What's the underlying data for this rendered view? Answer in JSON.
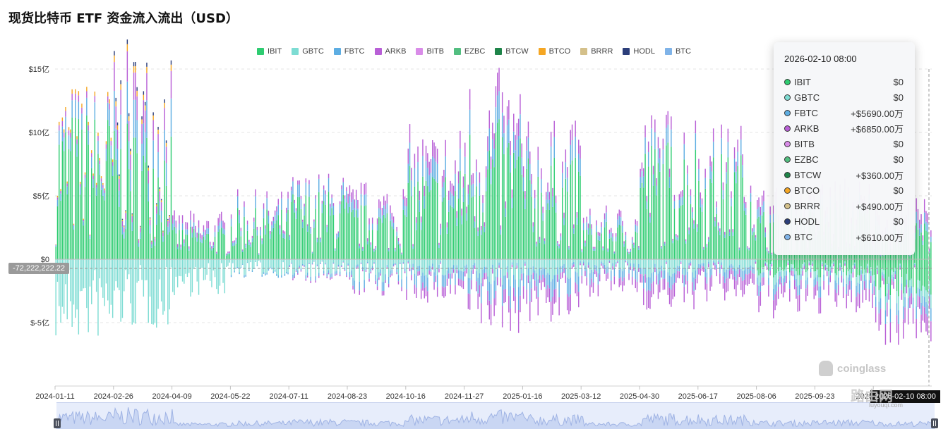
{
  "title": "现货比特币 ETF 资金流入流出（USD）",
  "legend": [
    {
      "name": "IBIT",
      "color": "#2ecc71"
    },
    {
      "name": "GBTC",
      "color": "#7ddcd3"
    },
    {
      "name": "FBTC",
      "color": "#5dade2"
    },
    {
      "name": "ARKB",
      "color": "#b85fd6"
    },
    {
      "name": "BITB",
      "color": "#d98ce8"
    },
    {
      "name": "EZBC",
      "color": "#52be80"
    },
    {
      "name": "BTCW",
      "color": "#1e8449"
    },
    {
      "name": "BTCO",
      "color": "#f5a623"
    },
    {
      "name": "BRRR",
      "color": "#d4c08a"
    },
    {
      "name": "HODL",
      "color": "#2c3e7a"
    },
    {
      "name": "BTC",
      "color": "#7fb3e8"
    }
  ],
  "tooltip": {
    "date": "2026-02-10 08:00",
    "rows": [
      {
        "name": "IBIT",
        "value": "$0",
        "color": "#2ecc71"
      },
      {
        "name": "GBTC",
        "value": "$0",
        "color": "#7ddcd3"
      },
      {
        "name": "FBTC",
        "value": "+$5690.00万",
        "color": "#5dade2"
      },
      {
        "name": "ARKB",
        "value": "+$6850.00万",
        "color": "#b85fd6"
      },
      {
        "name": "BITB",
        "value": "$0",
        "color": "#d98ce8"
      },
      {
        "name": "EZBC",
        "value": "$0",
        "color": "#52be80"
      },
      {
        "name": "BTCW",
        "value": "+$360.00万",
        "color": "#1e8449"
      },
      {
        "name": "BTCO",
        "value": "$0",
        "color": "#f5a623"
      },
      {
        "name": "BRRR",
        "value": "+$490.00万",
        "color": "#d4c08a"
      },
      {
        "name": "HODL",
        "value": "$0",
        "color": "#2c3e7a"
      },
      {
        "name": "BTC",
        "value": "+$610.00万",
        "color": "#7fb3e8"
      }
    ]
  },
  "crosshair_value": "-72,222,222.22",
  "watermark": "coinglass",
  "date_tag": "2026-02-10 08:00",
  "site_logo": {
    "text": "路由网",
    "sub": "luyouqi.com"
  },
  "chart_data": {
    "type": "bar",
    "stacked": true,
    "y_tick_labels": [
      "$15亿",
      "$10亿",
      "$5亿",
      "$0",
      "$-5亿"
    ],
    "y_tick_values": [
      15,
      10,
      5,
      0,
      -5
    ],
    "y_unit": "亿 USD",
    "ylim": [
      -10,
      15
    ],
    "grid": true,
    "x_tick_labels": [
      "2024-01-11",
      "2024-02-26",
      "2024-04-09",
      "2024-05-22",
      "2024-07-11",
      "2024-08-23",
      "2024-10-16",
      "2024-11-27",
      "2025-01-16",
      "2025-03-12",
      "2025-04-30",
      "2025-06-17",
      "2025-08-06",
      "2025-09-23",
      "2025-11-1"
    ],
    "series": [
      {
        "name": "IBIT",
        "color": "#2ecc71"
      },
      {
        "name": "GBTC",
        "color": "#7ddcd3"
      },
      {
        "name": "FBTC",
        "color": "#5dade2"
      },
      {
        "name": "ARKB",
        "color": "#b85fd6"
      },
      {
        "name": "BTCW",
        "color": "#1e8449"
      },
      {
        "name": "BTCO",
        "color": "#f5a623"
      },
      {
        "name": "HODL",
        "color": "#2c3e7a"
      }
    ],
    "segments": [
      {
        "label": "2024-01-11",
        "pos": [
          6.5,
          0,
          0.8,
          0.3,
          0,
          0.2,
          0
        ],
        "neg": [
          0,
          -3.5,
          0,
          0,
          0,
          0,
          0
        ]
      },
      {
        "label": "2024-02-26",
        "pos": [
          5.8,
          0,
          1.8,
          1.3,
          0,
          0.3,
          0.2
        ],
        "neg": [
          0,
          -3.0,
          0,
          0,
          0,
          0,
          0
        ]
      },
      {
        "label": "2024-04-09",
        "pos": [
          1.4,
          0,
          0.3,
          0.4,
          0,
          0,
          0
        ],
        "neg": [
          0,
          -1.6,
          0,
          0,
          0,
          0,
          0
        ]
      },
      {
        "label": "2024-05-22",
        "pos": [
          2.2,
          0,
          0.5,
          0.3,
          0,
          0,
          0
        ],
        "neg": [
          0,
          -0.7,
          -0.1,
          0,
          0,
          0,
          0
        ]
      },
      {
        "label": "2024-07-11",
        "pos": [
          3.0,
          0,
          0.6,
          0.2,
          0,
          0,
          0
        ],
        "neg": [
          0,
          -0.8,
          -0.2,
          -0.1,
          0,
          0,
          0
        ]
      },
      {
        "label": "2024-08-23",
        "pos": [
          2.4,
          0,
          0.5,
          0.5,
          0,
          0,
          0
        ],
        "neg": [
          0,
          -1.0,
          -0.4,
          -0.2,
          0,
          0,
          0
        ]
      },
      {
        "label": "2024-10-16",
        "pos": [
          4.0,
          0,
          1.0,
          0.8,
          0,
          0,
          0
        ],
        "neg": [
          0,
          -0.8,
          -0.6,
          -0.5,
          0,
          0,
          0
        ]
      },
      {
        "label": "2024-11-27",
        "pos": [
          6.0,
          0,
          1.2,
          1.0,
          0,
          0,
          0
        ],
        "neg": [
          0,
          -1.2,
          -1.0,
          -1.0,
          0,
          0,
          0
        ]
      },
      {
        "label": "2025-01-16",
        "pos": [
          4.4,
          0,
          0.9,
          0.7,
          0,
          0,
          0
        ],
        "neg": [
          0,
          -1.0,
          -0.9,
          -0.9,
          0,
          0,
          0
        ]
      },
      {
        "label": "2025-03-12",
        "pos": [
          1.6,
          0,
          0.4,
          0.3,
          0,
          0,
          0
        ],
        "neg": [
          0,
          -0.6,
          -0.5,
          -0.5,
          0,
          0,
          0
        ]
      },
      {
        "label": "2025-04-30",
        "pos": [
          5.2,
          0,
          0.8,
          0.6,
          0,
          0,
          0
        ],
        "neg": [
          0,
          -0.8,
          -0.6,
          -0.8,
          0,
          0,
          0
        ]
      },
      {
        "label": "2025-06-17",
        "pos": [
          4.6,
          0,
          0.7,
          0.6,
          0,
          0,
          0
        ],
        "neg": [
          0,
          -0.6,
          -0.5,
          -0.8,
          0,
          0,
          0
        ]
      },
      {
        "label": "2025-08-06",
        "pos": [
          2.2,
          0,
          0.5,
          0.5,
          0,
          0,
          0
        ],
        "neg": [
          -0.8,
          -0.5,
          -0.5,
          -0.8,
          0,
          0,
          0
        ]
      },
      {
        "label": "2025-09-23",
        "pos": [
          2.6,
          0,
          0.5,
          0.5,
          0,
          0,
          0
        ],
        "neg": [
          -0.8,
          -0.4,
          -0.5,
          -0.7,
          0,
          0,
          0
        ]
      },
      {
        "label": "2025-11-1",
        "pos": [
          1.6,
          0,
          0.5,
          0.6,
          0,
          0,
          0
        ],
        "neg": [
          -1.6,
          -0.6,
          -0.6,
          -0.9,
          0,
          0,
          0
        ]
      }
    ]
  }
}
